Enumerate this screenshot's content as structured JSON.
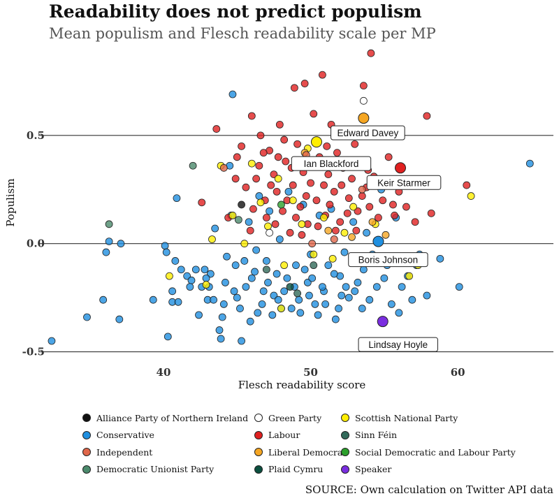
{
  "title": "Readability does not predict populism",
  "subtitle": "Mean populism and Flesch readability scale per MP",
  "source": "SOURCE: Own calculation on Twitter API data",
  "chart_data": {
    "type": "scatter",
    "xlabel": "Flesch readability score",
    "ylabel": "Populism",
    "xlim": [
      31.5,
      66.5
    ],
    "ylim": [
      -0.55,
      0.9
    ],
    "xticks": [
      40,
      50,
      60
    ],
    "yticks": [
      -0.5,
      0.0,
      0.5
    ],
    "ytick_labels": [
      "-0.5",
      "0.0",
      "0.5"
    ],
    "grid": "horizontal lines at y ticks",
    "legend_placement": "bottom",
    "legend": [
      {
        "name": "Alliance Party of Northern Ireland",
        "color": "#111111"
      },
      {
        "name": "Conservative",
        "color": "#1f8fe0"
      },
      {
        "name": "Independent",
        "color": "#e0674a"
      },
      {
        "name": "Democratic Unionist Party",
        "color": "#4b8a6c"
      },
      {
        "name": "Green Party",
        "color": "#ffffff"
      },
      {
        "name": "Labour",
        "color": "#e02020"
      },
      {
        "name": "Liberal Democrat",
        "color": "#f5a623"
      },
      {
        "name": "Plaid Cymru",
        "color": "#0b4f3f"
      },
      {
        "name": "Scottish National Party",
        "color": "#ffee00"
      },
      {
        "name": "Sinn Féin",
        "color": "#326a5a"
      },
      {
        "name": "Social Democratic and Labour Party",
        "color": "#2ca02c"
      },
      {
        "name": "Speaker",
        "color": "#7a2ee0"
      }
    ],
    "highlighted": [
      {
        "name": "Edward Davey",
        "party": "Liberal Democrat",
        "x": 53.6,
        "y": 0.58
      },
      {
        "name": "Ian Blackford",
        "party": "Scottish National Party",
        "x": 50.4,
        "y": 0.47
      },
      {
        "name": "Keir Starmer",
        "party": "Labour",
        "x": 56.1,
        "y": 0.35
      },
      {
        "name": "Boris Johnson",
        "party": "Conservative",
        "x": 54.6,
        "y": 0.01
      },
      {
        "name": "Lindsay Hoyle",
        "party": "Speaker",
        "x": 54.9,
        "y": -0.36
      }
    ],
    "series": [
      {
        "party": "Conservative",
        "points": [
          [
            32.4,
            -0.45
          ],
          [
            34.8,
            -0.34
          ],
          [
            35.9,
            -0.26
          ],
          [
            36.1,
            -0.04
          ],
          [
            36.3,
            0.01
          ],
          [
            37.0,
            -0.35
          ],
          [
            37.1,
            0.0
          ],
          [
            39.3,
            -0.26
          ],
          [
            40.1,
            -0.01
          ],
          [
            40.2,
            -0.04
          ],
          [
            40.3,
            -0.43
          ],
          [
            40.6,
            -0.22
          ],
          [
            40.6,
            -0.27
          ],
          [
            40.8,
            -0.08
          ],
          [
            40.9,
            0.21
          ],
          [
            41.0,
            -0.27
          ],
          [
            41.2,
            -0.12
          ],
          [
            41.6,
            -0.15
          ],
          [
            41.9,
            -0.17
          ],
          [
            42.2,
            -0.12
          ],
          [
            42.4,
            -0.33
          ],
          [
            42.6,
            -0.2
          ],
          [
            42.8,
            -0.12
          ],
          [
            43.0,
            -0.26
          ],
          [
            43.2,
            -0.14
          ],
          [
            43.5,
            0.07
          ],
          [
            43.8,
            -0.4
          ],
          [
            43.9,
            -0.44
          ],
          [
            44.0,
            -0.34
          ],
          [
            44.3,
            -0.06
          ],
          [
            44.5,
            0.36
          ],
          [
            44.6,
            0.13
          ],
          [
            44.7,
            0.69
          ],
          [
            44.9,
            -0.1
          ],
          [
            45.2,
            -0.3
          ],
          [
            45.3,
            -0.45
          ],
          [
            45.6,
            -0.2
          ],
          [
            45.8,
            0.1
          ],
          [
            46.0,
            -0.16
          ],
          [
            46.3,
            -0.03
          ],
          [
            46.5,
            0.22
          ],
          [
            46.7,
            -0.28
          ],
          [
            47.0,
            -0.08
          ],
          [
            47.2,
            0.15
          ],
          [
            47.4,
            -0.33
          ],
          [
            47.7,
            -0.14
          ],
          [
            47.9,
            0.02
          ],
          [
            48.2,
            -0.22
          ],
          [
            48.5,
            0.24
          ],
          [
            48.7,
            -0.3
          ],
          [
            49.0,
            -0.1
          ],
          [
            49.3,
            -0.32
          ],
          [
            49.5,
            0.18
          ],
          [
            49.8,
            -0.18
          ],
          [
            50.0,
            -0.05
          ],
          [
            50.3,
            -0.28
          ],
          [
            50.6,
            0.13
          ],
          [
            50.9,
            -0.22
          ],
          [
            51.2,
            -0.1
          ],
          [
            51.4,
            0.16
          ],
          [
            51.7,
            -0.35
          ],
          [
            52.0,
            -0.15
          ],
          [
            52.3,
            -0.04
          ],
          [
            52.6,
            -0.25
          ],
          [
            52.9,
            0.1
          ],
          [
            53.2,
            -0.18
          ],
          [
            53.5,
            -0.3
          ],
          [
            53.8,
            0.05
          ],
          [
            54.2,
            -0.05
          ],
          [
            54.5,
            -0.2
          ],
          [
            54.8,
            0.25
          ],
          [
            55.2,
            -0.1
          ],
          [
            55.5,
            -0.28
          ],
          [
            55.8,
            0.12
          ],
          [
            56.2,
            -0.2
          ],
          [
            56.6,
            -0.15
          ],
          [
            56.9,
            -0.26
          ],
          [
            57.4,
            -0.05
          ],
          [
            57.9,
            -0.24
          ],
          [
            58.8,
            -0.07
          ],
          [
            60.1,
            -0.2
          ],
          [
            64.9,
            0.37
          ],
          [
            43.4,
            -0.26
          ],
          [
            45.0,
            -0.25
          ],
          [
            46.2,
            -0.13
          ],
          [
            47.5,
            -0.24
          ],
          [
            48.9,
            -0.2
          ],
          [
            50.1,
            -0.16
          ],
          [
            51.0,
            -0.28
          ],
          [
            52.4,
            -0.2
          ],
          [
            44.2,
            -0.18
          ],
          [
            46.8,
            -0.22
          ],
          [
            49.2,
            -0.26
          ],
          [
            51.6,
            -0.14
          ],
          [
            53.0,
            -0.22
          ],
          [
            48.0,
            -0.3
          ],
          [
            50.5,
            -0.33
          ],
          [
            45.5,
            -0.08
          ],
          [
            47.1,
            -0.18
          ],
          [
            49.6,
            -0.12
          ],
          [
            52.1,
            -0.24
          ],
          [
            43.1,
            -0.2
          ],
          [
            44.8,
            -0.22
          ],
          [
            46.4,
            -0.32
          ],
          [
            48.4,
            -0.16
          ],
          [
            50.8,
            -0.2
          ],
          [
            53.6,
            -0.12
          ],
          [
            55.0,
            -0.16
          ],
          [
            41.8,
            -0.2
          ],
          [
            42.9,
            -0.16
          ],
          [
            44.1,
            -0.28
          ],
          [
            45.9,
            -0.36
          ],
          [
            47.8,
            -0.26
          ],
          [
            49.9,
            -0.24
          ],
          [
            51.9,
            -0.3
          ],
          [
            54.0,
            -0.26
          ],
          [
            56.0,
            -0.32
          ],
          [
            57.2,
            -0.1
          ]
        ]
      },
      {
        "party": "Labour",
        "points": [
          [
            42.6,
            0.19
          ],
          [
            43.6,
            0.53
          ],
          [
            44.4,
            0.12
          ],
          [
            45.0,
            0.4
          ],
          [
            45.3,
            0.45
          ],
          [
            45.6,
            0.26
          ],
          [
            45.9,
            0.06
          ],
          [
            46.0,
            0.59
          ],
          [
            46.3,
            0.3
          ],
          [
            46.6,
            0.5
          ],
          [
            46.9,
            0.2
          ],
          [
            47.0,
            0.12
          ],
          [
            47.2,
            0.43
          ],
          [
            47.5,
            0.32
          ],
          [
            47.7,
            0.24
          ],
          [
            47.9,
            0.55
          ],
          [
            48.1,
            0.15
          ],
          [
            48.3,
            0.38
          ],
          [
            48.6,
            0.05
          ],
          [
            48.8,
            0.27
          ],
          [
            48.9,
            0.72
          ],
          [
            49.1,
            0.46
          ],
          [
            49.3,
            0.17
          ],
          [
            49.5,
            0.33
          ],
          [
            49.6,
            0.74
          ],
          [
            49.8,
            0.09
          ],
          [
            50.0,
            0.28
          ],
          [
            50.2,
            0.6
          ],
          [
            50.4,
            0.2
          ],
          [
            50.6,
            0.4
          ],
          [
            50.8,
            0.78
          ],
          [
            51.0,
            0.13
          ],
          [
            51.2,
            0.32
          ],
          [
            51.4,
            0.55
          ],
          [
            51.6,
            0.24
          ],
          [
            51.8,
            0.42
          ],
          [
            52.0,
            0.1
          ],
          [
            52.2,
            0.35
          ],
          [
            52.4,
            0.5
          ],
          [
            52.6,
            0.21
          ],
          [
            52.8,
            0.3
          ],
          [
            53.0,
            0.46
          ],
          [
            53.2,
            0.15
          ],
          [
            53.4,
            0.38
          ],
          [
            53.6,
            0.73
          ],
          [
            53.8,
            0.26
          ],
          [
            54.1,
            0.88
          ],
          [
            54.3,
            0.31
          ],
          [
            54.6,
            0.12
          ],
          [
            54.9,
            0.2
          ],
          [
            55.3,
            0.4
          ],
          [
            55.7,
            0.13
          ],
          [
            56.0,
            0.24
          ],
          [
            56.5,
            0.17
          ],
          [
            57.1,
            0.1
          ],
          [
            57.9,
            0.59
          ],
          [
            58.2,
            0.14
          ],
          [
            60.6,
            0.27
          ],
          [
            46.5,
            0.36
          ],
          [
            47.6,
            0.09
          ],
          [
            48.4,
            0.2
          ],
          [
            49.0,
            0.12
          ],
          [
            49.7,
            0.22
          ],
          [
            50.5,
            0.08
          ],
          [
            51.3,
            0.18
          ],
          [
            52.1,
            0.27
          ],
          [
            53.1,
            0.06
          ],
          [
            54.0,
            0.17
          ],
          [
            46.1,
            0.16
          ],
          [
            47.3,
            0.27
          ],
          [
            48.7,
            0.35
          ],
          [
            50.9,
            0.27
          ],
          [
            52.5,
            0.14
          ],
          [
            53.9,
            0.34
          ],
          [
            55.0,
            0.29
          ],
          [
            47.8,
            0.4
          ],
          [
            49.4,
            0.04
          ],
          [
            51.1,
            0.45
          ],
          [
            44.9,
            0.3
          ],
          [
            46.8,
            0.42
          ],
          [
            48.2,
            0.48
          ],
          [
            50.1,
            0.36
          ],
          [
            51.7,
            0.06
          ],
          [
            53.5,
            0.22
          ],
          [
            55.6,
            0.18
          ]
        ]
      },
      {
        "party": "Scottish National Party",
        "points": [
          [
            40.4,
            -0.15
          ],
          [
            43.3,
            0.02
          ],
          [
            43.9,
            0.36
          ],
          [
            44.7,
            0.13
          ],
          [
            45.5,
            0.0
          ],
          [
            46.6,
            0.19
          ],
          [
            47.1,
            0.08
          ],
          [
            47.8,
            0.3
          ],
          [
            48.2,
            -0.1
          ],
          [
            48.8,
            0.2
          ],
          [
            49.4,
            0.09
          ],
          [
            49.8,
            0.44
          ],
          [
            50.2,
            -0.05
          ],
          [
            50.9,
            0.12
          ],
          [
            51.5,
            -0.07
          ],
          [
            52.3,
            0.05
          ],
          [
            52.9,
            0.17
          ],
          [
            53.3,
            -0.06
          ],
          [
            54.4,
            0.09
          ],
          [
            56.7,
            -0.15
          ],
          [
            57.3,
            -0.1
          ],
          [
            60.9,
            0.22
          ],
          [
            48.0,
            -0.3
          ],
          [
            42.9,
            -0.19
          ],
          [
            46.0,
            0.37
          ],
          [
            50.4,
            0.47
          ]
        ]
      },
      {
        "party": "Liberal Democrat",
        "points": [
          [
            49.6,
            0.42
          ],
          [
            51.2,
            0.06
          ],
          [
            52.8,
            0.03
          ],
          [
            54.2,
            0.1
          ],
          [
            55.1,
            0.04
          ],
          [
            53.6,
            0.58
          ]
        ]
      },
      {
        "party": "Independent",
        "points": [
          [
            44.1,
            0.35
          ],
          [
            49.7,
            0.41
          ],
          [
            50.1,
            0.0
          ],
          [
            51.6,
            0.02
          ],
          [
            53.5,
            0.25
          ]
        ]
      },
      {
        "party": "Green Party",
        "points": [
          [
            53.6,
            0.66
          ],
          [
            47.2,
            0.05
          ]
        ]
      },
      {
        "party": "Democratic Unionist Party",
        "points": [
          [
            36.3,
            0.09
          ],
          [
            42.0,
            0.36
          ],
          [
            45.1,
            0.11
          ]
        ]
      },
      {
        "party": "Alliance Party of Northern Ireland",
        "points": [
          [
            45.3,
            0.18
          ]
        ]
      },
      {
        "party": "Plaid Cymru",
        "points": [
          [
            48.6,
            -0.2
          ]
        ]
      },
      {
        "party": "Sinn Féin",
        "points": [
          [
            49.1,
            -0.23
          ],
          [
            50.2,
            -0.1
          ],
          [
            47.0,
            -0.12
          ]
        ]
      },
      {
        "party": "Social Democratic and Labour Party",
        "points": [
          [
            48.0,
            0.18
          ]
        ]
      },
      {
        "party": "Speaker",
        "points": [
          [
            54.9,
            -0.36
          ]
        ]
      }
    ]
  }
}
